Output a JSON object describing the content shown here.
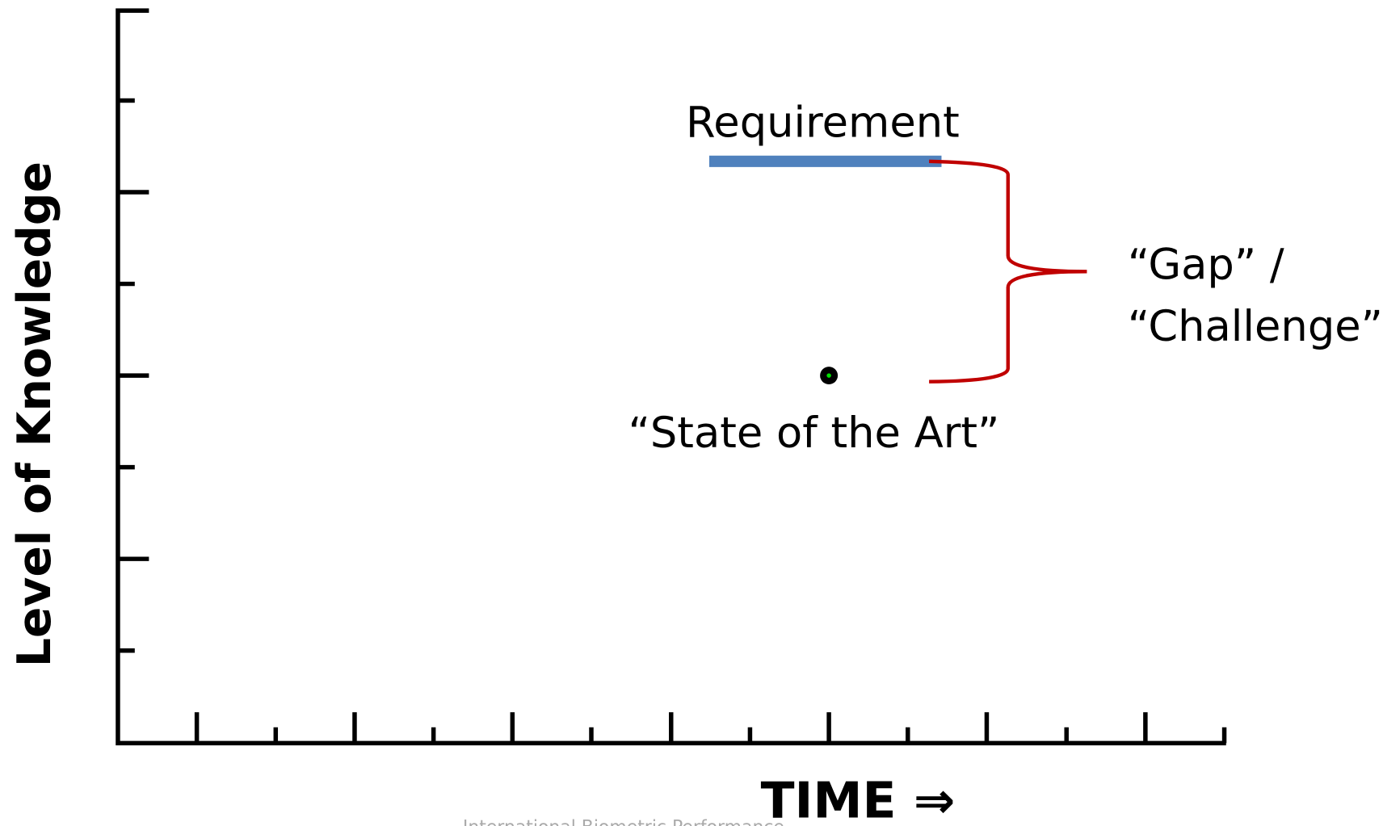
{
  "y_axis_label": "Level of Knowledge",
  "x_axis_label": "TIME ⇒",
  "requirement_label": "Requirement",
  "state_label": "“State of the Art”",
  "gap_label": [
    "“Gap” /",
    "“Challenge”"
  ],
  "footer": "International Biometric Performance"
}
